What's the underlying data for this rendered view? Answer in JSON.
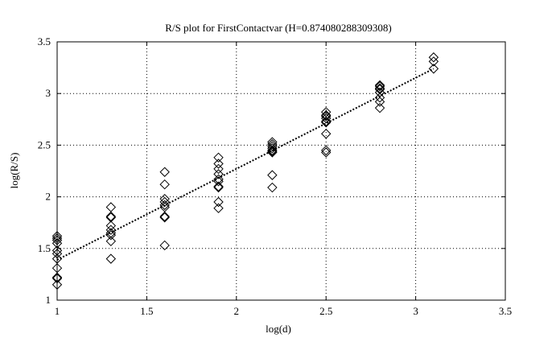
{
  "chart_data": {
    "type": "scatter",
    "title": "R/S plot for FirstContactvar (H=0.874080288309308)",
    "xlabel": "log(d)",
    "ylabel": "log(R/S)",
    "xlim": [
      1,
      3.5
    ],
    "ylim": [
      1,
      3.5
    ],
    "xticks": [
      1,
      1.5,
      2,
      2.5,
      3,
      3.5
    ],
    "yticks": [
      1,
      1.5,
      2,
      2.5,
      3,
      3.5
    ],
    "xtick_labels": [
      "1",
      "1.5",
      "2",
      "2.5",
      "3",
      "3.5"
    ],
    "ytick_labels": [
      "1",
      "1.5",
      "2",
      "2.5",
      "3",
      "3.5"
    ],
    "grid": true,
    "marker": "diamond-open",
    "x": [
      1.0,
      1.0,
      1.0,
      1.0,
      1.0,
      1.0,
      1.0,
      1.0,
      1.0,
      1.0,
      1.0,
      1.3,
      1.3,
      1.3,
      1.3,
      1.3,
      1.3,
      1.3,
      1.3,
      1.3,
      1.6,
      1.6,
      1.6,
      1.6,
      1.6,
      1.6,
      1.6,
      1.6,
      1.6,
      1.9,
      1.9,
      1.9,
      1.9,
      1.9,
      1.9,
      1.9,
      1.9,
      1.9,
      1.9,
      2.2,
      2.2,
      2.2,
      2.2,
      2.2,
      2.2,
      2.2,
      2.2,
      2.2,
      2.5,
      2.5,
      2.5,
      2.5,
      2.5,
      2.5,
      2.5,
      2.5,
      2.5,
      2.8,
      2.8,
      2.8,
      2.8,
      2.8,
      2.8,
      2.8,
      2.8,
      3.1,
      3.1,
      3.1
    ],
    "y": [
      1.62,
      1.6,
      1.55,
      1.48,
      1.4,
      1.31,
      1.22,
      1.21,
      1.15,
      1.58,
      1.45,
      1.9,
      1.81,
      1.8,
      1.72,
      1.68,
      1.65,
      1.63,
      1.57,
      1.4,
      2.24,
      2.12,
      1.98,
      1.95,
      1.9,
      1.81,
      1.8,
      1.53,
      1.92,
      2.38,
      2.32,
      2.22,
      2.17,
      2.15,
      2.1,
      2.09,
      1.95,
      1.89,
      2.27,
      2.53,
      2.51,
      2.49,
      2.47,
      2.45,
      2.43,
      2.21,
      2.09,
      2.44,
      2.82,
      2.79,
      2.76,
      2.73,
      2.72,
      2.61,
      2.45,
      2.43,
      2.78,
      3.08,
      3.07,
      3.05,
      3.01,
      2.96,
      2.92,
      2.86,
      3.04,
      3.35,
      3.31,
      3.24
    ],
    "trend_line": {
      "x": [
        1,
        3.1
      ],
      "y": [
        1.39,
        3.24
      ]
    },
    "colors": {
      "marker": "#000000",
      "grid": "#000000",
      "axes": "#000000",
      "trend": "#000000"
    }
  }
}
